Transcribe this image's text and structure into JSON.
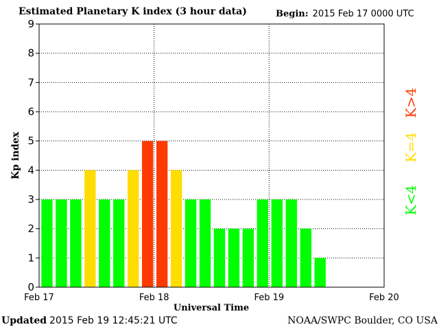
{
  "header": {
    "title": "Estimated Planetary K index (3 hour data)",
    "begin_label": "Begin:",
    "begin_value": "2015 Feb 17 0000 UTC"
  },
  "footer": {
    "updated_label": "Updated",
    "updated_value": "2015 Feb 19 12:45:21 UTC",
    "source": "NOAA/SWPC Boulder, CO USA"
  },
  "legend": {
    "high": "K>4",
    "equal": "K=4",
    "low": "K<4"
  },
  "colors": {
    "low": "#00ff00",
    "equal": "#ffdd00",
    "high": "#ff3a00"
  },
  "chart_data": {
    "type": "bar",
    "title": "Estimated Planetary K index (3 hour data)",
    "xlabel": "Universal Time",
    "ylabel": "Kp index",
    "ylim": [
      0,
      9
    ],
    "yticks": [
      0,
      1,
      2,
      3,
      4,
      5,
      6,
      7,
      8,
      9
    ],
    "xlim_days": [
      0,
      3
    ],
    "xticks": [
      {
        "day": 0,
        "label": "Feb 17"
      },
      {
        "day": 1,
        "label": "Feb 18"
      },
      {
        "day": 2,
        "label": "Feb 19"
      },
      {
        "day": 3,
        "label": "Feb 20"
      }
    ],
    "grid": true,
    "bar_interval_hours": 3,
    "values": [
      3,
      3,
      3,
      4,
      3,
      3,
      4,
      5,
      5,
      4,
      3,
      3,
      2,
      2,
      2,
      3,
      3,
      3,
      2,
      1
    ]
  }
}
